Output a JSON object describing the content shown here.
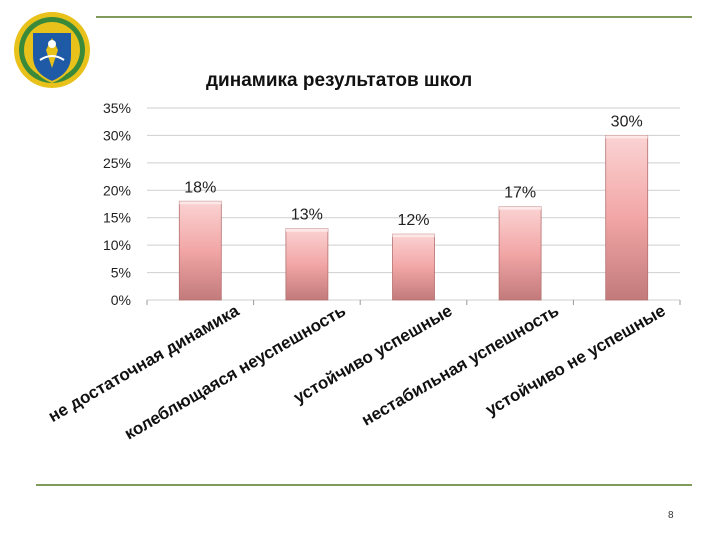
{
  "colors": {
    "rule": "#7f9a5a",
    "bar_top": "#fbd3d3",
    "bar_mid": "#f2a6a6",
    "bar_bottom": "#c27a7a",
    "grid": "#cfcfcf",
    "emblem_gold": "#e8c21a",
    "emblem_blue": "#1f5aa6",
    "emblem_green": "#3a8a3a"
  },
  "emblem": {
    "icon": "crest-emblem-icon"
  },
  "page": {
    "number": "8"
  },
  "chart_data": {
    "type": "bar",
    "title": "динамика результатов школ",
    "categories": [
      "не достаточная динамика",
      "колеблющаяся неуспешность",
      "устойчиво успешные",
      "нестабильная успешность",
      "устойчиво не успешные"
    ],
    "values": [
      18,
      13,
      12,
      17,
      30
    ],
    "data_labels": [
      "18%",
      "13%",
      "12%",
      "17%",
      "30%"
    ],
    "ylim": [
      0,
      35
    ],
    "y_ticks": [
      0,
      5,
      10,
      15,
      20,
      25,
      30,
      35
    ],
    "y_tick_labels": [
      "0%",
      "5%",
      "10%",
      "15%",
      "20%",
      "25%",
      "30%",
      "35%"
    ],
    "grid": true,
    "legend": "none",
    "xlabel": "",
    "ylabel": ""
  }
}
